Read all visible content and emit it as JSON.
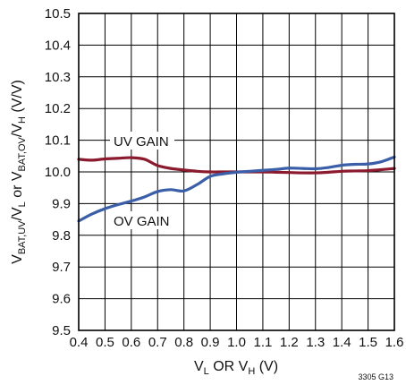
{
  "chart_data": {
    "type": "line",
    "title": "",
    "x": [
      0.4,
      0.45,
      0.5,
      0.55,
      0.6,
      0.65,
      0.7,
      0.75,
      0.8,
      0.85,
      0.9,
      0.95,
      1.0,
      1.05,
      1.1,
      1.15,
      1.2,
      1.25,
      1.3,
      1.35,
      1.4,
      1.45,
      1.5,
      1.55,
      1.6
    ],
    "series": [
      {
        "name": "UV GAIN",
        "color": "#8b1a2e",
        "values": [
          10.04,
          10.037,
          10.041,
          10.043,
          10.045,
          10.04,
          10.02,
          10.011,
          10.006,
          10.002,
          10.0,
          10.0,
          10.0,
          10.0,
          10.0,
          9.999,
          9.998,
          9.997,
          9.997,
          9.999,
          10.002,
          10.003,
          10.004,
          10.007,
          10.011
        ]
      },
      {
        "name": "OV GAIN",
        "color": "#3a5fa8",
        "values": [
          9.845,
          9.867,
          9.884,
          9.897,
          9.908,
          9.921,
          9.938,
          9.944,
          9.94,
          9.96,
          9.986,
          9.994,
          9.999,
          10.002,
          10.005,
          10.008,
          10.012,
          10.011,
          10.01,
          10.014,
          10.021,
          10.024,
          10.025,
          10.032,
          10.047
        ]
      }
    ],
    "x_ticks": [
      "0.4",
      "0.5",
      "0.6",
      "0.7",
      "0.8",
      "0.9",
      "1.0",
      "1.1",
      "1.2",
      "1.3",
      "1.4",
      "1.5",
      "1.6"
    ],
    "y_ticks": [
      "9.5",
      "9.6",
      "9.7",
      "9.8",
      "9.9",
      "10.0",
      "10.1",
      "10.2",
      "10.3",
      "10.4",
      "10.5"
    ],
    "xlim": [
      0.4,
      1.6
    ],
    "ylim": [
      9.5,
      10.5
    ],
    "xlabel": {
      "v1": "V",
      "s1": "L",
      "mid": " OR V",
      "s2": "H",
      "end": " (V)"
    },
    "ylabel": {
      "v1": "V",
      "s1": "BAT,UV",
      "t1": "/V",
      "s2": "L",
      "t2": " or V",
      "s3": "BAT,OV",
      "t3": "/V",
      "s4": "H",
      "t4": " (V/V)"
    },
    "annotations": {
      "uv": "UV GAIN",
      "ov": "OV GAIN"
    },
    "figure_id": "3305 G13",
    "grid": true,
    "legend": "none"
  }
}
